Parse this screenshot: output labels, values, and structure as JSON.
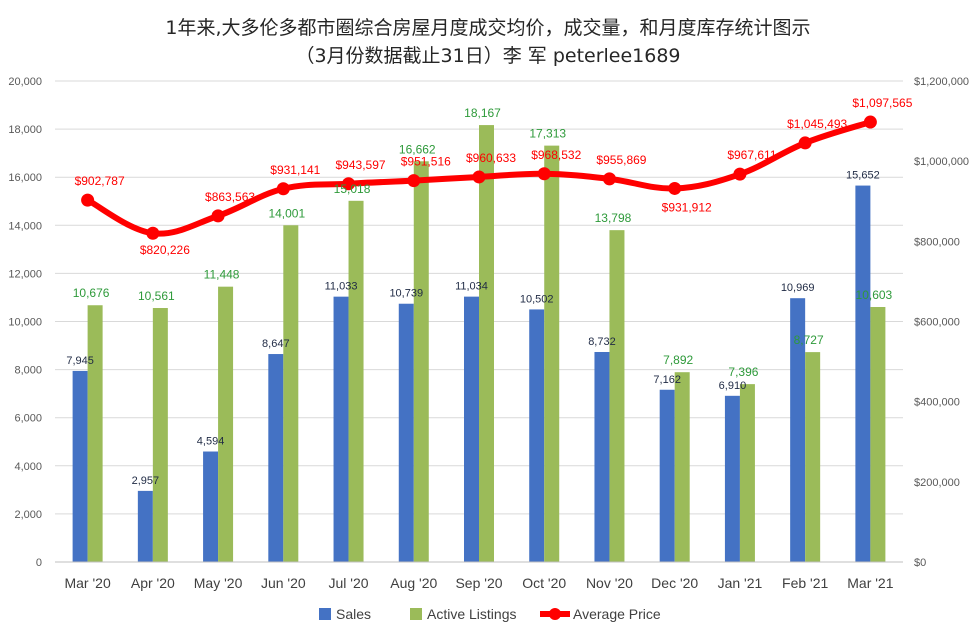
{
  "chart_data": {
    "type": "bar",
    "title_lines": [
      "1年来,大多伦多都市圈综合房屋月度成交均价，成交量，和月度库存统计图示",
      "（3月份数据截止31日）李 军 peterlee1689"
    ],
    "categories": [
      "Mar '20",
      "Apr '20",
      "May '20",
      "Jun '20",
      "Jul '20",
      "Aug '20",
      "Sep '20",
      "Oct '20",
      "Nov '20",
      "Dec '20",
      "Jan '21",
      "Feb '21",
      "Mar '21"
    ],
    "series": [
      {
        "name": "Sales",
        "type": "bar",
        "axis": "left",
        "color": "#4472c4",
        "values": [
          7945,
          2957,
          4594,
          8647,
          11033,
          10739,
          11034,
          10502,
          8732,
          7162,
          6910,
          10969,
          15652
        ],
        "labels": [
          "7,945",
          "2,957",
          "4,594",
          "8,647",
          "11,033",
          "10,739",
          "11,034",
          "10,502",
          "8,732",
          "7,162",
          "6,910",
          "10,969",
          "15,652"
        ]
      },
      {
        "name": "Active Listings",
        "type": "bar",
        "axis": "left",
        "color": "#9bbb59",
        "values": [
          10676,
          10561,
          11448,
          14001,
          15018,
          16662,
          18167,
          17313,
          13798,
          7892,
          7396,
          8727,
          10603
        ],
        "labels": [
          "10,676",
          "10,561",
          "11,448",
          "14,001",
          "15,018",
          "16,662",
          "18,167",
          "17,313",
          "13,798",
          "7,892",
          "7,396",
          "8,727",
          "10,603"
        ]
      },
      {
        "name": "Average Price",
        "type": "line",
        "axis": "right",
        "color": "#ff0000",
        "values": [
          902787,
          820226,
          863563,
          931141,
          943597,
          951516,
          960633,
          968532,
          955869,
          931912,
          967611,
          1045493,
          1097565
        ],
        "labels": [
          "$902,787",
          "$820,226",
          "$863,563",
          "$931,141",
          "$943,597",
          "$951,516",
          "$960,633",
          "$968,532",
          "$955,869",
          "$931,912",
          "$967,611",
          "$1,045,493",
          "$1,097,565"
        ]
      }
    ],
    "y_left": {
      "ylim": [
        0,
        20000
      ],
      "ticks": [
        0,
        2000,
        4000,
        6000,
        8000,
        10000,
        12000,
        14000,
        16000,
        18000,
        20000
      ],
      "tick_labels": [
        "0",
        "2,000",
        "4,000",
        "6,000",
        "8,000",
        "10,000",
        "12,000",
        "14,000",
        "16,000",
        "18,000",
        "20,000"
      ]
    },
    "y_right": {
      "ylim": [
        0,
        1200000
      ],
      "ticks": [
        0,
        200000,
        400000,
        600000,
        800000,
        1000000,
        1200000
      ],
      "tick_labels": [
        "$0",
        "$200,000",
        "$400,000",
        "$600,000",
        "$800,000",
        "$1,000,000",
        "$1,200,000"
      ]
    },
    "grid": true,
    "gridline_color": "#d9d9d9",
    "legend_position": "bottom"
  }
}
